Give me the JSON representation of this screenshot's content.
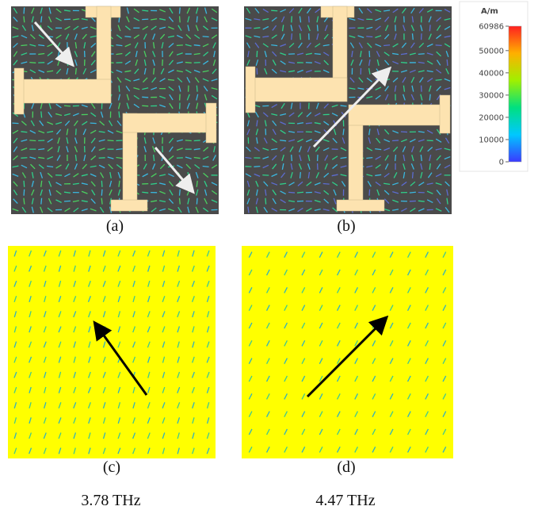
{
  "panels": [
    {
      "label": "(a)"
    },
    {
      "label": "(b)"
    },
    {
      "label": "(c)"
    },
    {
      "label": "(d)"
    }
  ],
  "frequencies": [
    "3.78 THz",
    "4.47 THz"
  ],
  "colorbar": {
    "unit": "A/m",
    "ticks": [
      60986,
      50000,
      40000,
      30000,
      20000,
      10000,
      0
    ]
  }
}
